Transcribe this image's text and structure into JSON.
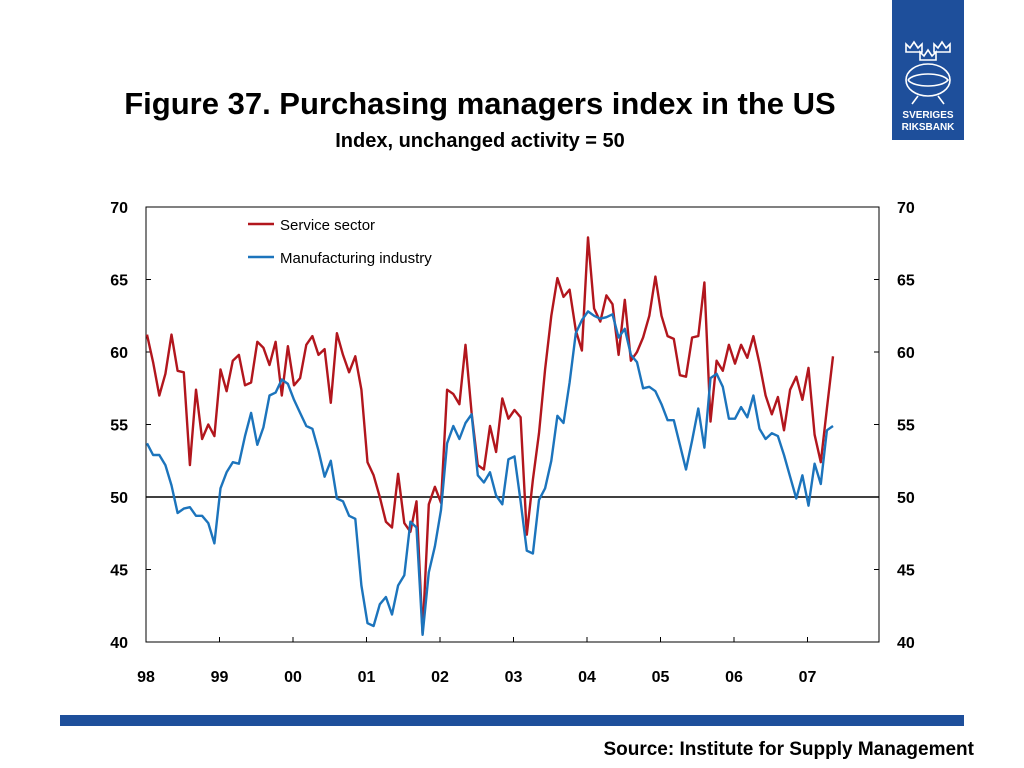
{
  "slide": {
    "title": "Figure 37. Purchasing managers index in the US",
    "subtitle": "Index, unchanged activity = 50",
    "source": "Source: Institute for Supply Management",
    "logo_text": "SVERIGES RIKSBANK",
    "brand_color": "#1e4f9b"
  },
  "chart_data": {
    "type": "line",
    "x_start": "1998-01",
    "x_end": "2007-05",
    "x_tick_labels": [
      "98",
      "99",
      "00",
      "01",
      "02",
      "03",
      "04",
      "05",
      "06",
      "07"
    ],
    "ylim": [
      40,
      70
    ],
    "y_ticks": [
      40,
      45,
      50,
      55,
      60,
      65,
      70
    ],
    "reference_line": 50,
    "legend_position": "top-left",
    "grid": false,
    "series": [
      {
        "name": "Service sector",
        "color": "#b2161d",
        "values": [
          61.2,
          59.3,
          57.0,
          58.5,
          61.2,
          58.7,
          58.6,
          52.2,
          57.4,
          54.0,
          55.0,
          54.2,
          58.8,
          57.3,
          59.4,
          59.8,
          57.7,
          57.9,
          60.7,
          60.3,
          59.1,
          60.7,
          57.0,
          60.4,
          57.7,
          58.2,
          60.5,
          61.1,
          59.8,
          60.2,
          56.5,
          61.3,
          59.8,
          58.6,
          59.7,
          57.4,
          52.4,
          51.5,
          50.0,
          48.3,
          47.9,
          51.6,
          48.2,
          47.6,
          49.7,
          40.6,
          49.5,
          50.7,
          49.6,
          57.4,
          57.1,
          56.4,
          60.5,
          55.8,
          52.2,
          51.9,
          54.9,
          53.1,
          56.8,
          55.4,
          56.0,
          55.5,
          47.4,
          51.2,
          54.4,
          58.8,
          62.5,
          65.1,
          63.8,
          64.3,
          61.5,
          60.1,
          67.9,
          63.0,
          62.1,
          63.9,
          63.3,
          59.8,
          63.6,
          59.4,
          60.0,
          61.0,
          62.5,
          65.2,
          62.5,
          61.1,
          60.9,
          58.4,
          58.3,
          61.0,
          61.1,
          64.8,
          55.2,
          59.4,
          58.7,
          60.5,
          59.2,
          60.5,
          59.6,
          61.1,
          59.2,
          57.0,
          55.7,
          56.9,
          54.6,
          57.4,
          58.3,
          56.7,
          58.9,
          54.3,
          52.4,
          56.1,
          59.7
        ],
        "values_precision": "read from the plot"
      },
      {
        "name": "Manufacturing industry",
        "color": "#1c74bc",
        "values": [
          53.7,
          52.9,
          52.9,
          52.2,
          50.8,
          48.9,
          49.2,
          49.3,
          48.7,
          48.7,
          48.2,
          46.8,
          50.6,
          51.7,
          52.4,
          52.3,
          54.2,
          55.8,
          53.6,
          54.8,
          57.0,
          57.2,
          58.1,
          57.8,
          56.7,
          55.8,
          54.9,
          54.7,
          53.2,
          51.4,
          52.5,
          49.9,
          49.7,
          48.7,
          48.5,
          43.9,
          41.3,
          41.1,
          42.6,
          43.1,
          41.9,
          43.9,
          44.6,
          48.3,
          47.9,
          40.5,
          44.8,
          46.6,
          49.1,
          53.7,
          54.9,
          54.0,
          55.1,
          55.7,
          51.5,
          51.0,
          51.7,
          50.1,
          49.5,
          52.6,
          52.8,
          49.7,
          46.3,
          46.1,
          49.8,
          50.6,
          52.5,
          55.6,
          55.1,
          57.9,
          61.3,
          62.2,
          62.8,
          62.5,
          62.3,
          62.4,
          62.6,
          61.0,
          61.6,
          59.8,
          59.3,
          57.5,
          57.6,
          57.3,
          56.4,
          55.3,
          55.3,
          53.6,
          51.9,
          53.9,
          56.1,
          53.4,
          58.2,
          58.5,
          57.6,
          55.4,
          55.4,
          56.2,
          55.5,
          57.0,
          54.7,
          54.0,
          54.4,
          54.2,
          52.9,
          51.4,
          49.9,
          51.5,
          49.4,
          52.3,
          50.9,
          54.6,
          54.9
        ],
        "values_precision": "read from the plot"
      }
    ]
  }
}
